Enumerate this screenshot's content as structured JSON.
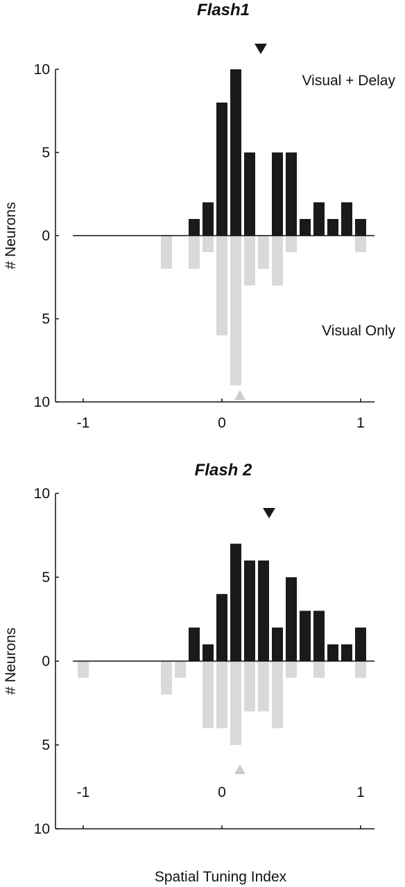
{
  "chart_data": [
    {
      "type": "bar",
      "title": "Flash1",
      "xlabel": "",
      "ylabel": "# Neurons",
      "xlim": [
        -1.08,
        1.1
      ],
      "ylim_up": [
        0,
        10
      ],
      "ylim_down": [
        0,
        10
      ],
      "xticks": [
        "-1",
        "0",
        "1"
      ],
      "xtick_values": [
        -1,
        0,
        1
      ],
      "yticks": [
        "10",
        "5",
        "0",
        "5",
        "10"
      ],
      "bin_width": 0.1,
      "series": [
        {
          "name": "Visual + Delay",
          "color": "#1a1a1a",
          "direction": "up",
          "x": [
            -0.2,
            -0.1,
            0.0,
            0.1,
            0.2,
            0.4,
            0.5,
            0.6,
            0.7,
            0.8,
            0.9,
            1.0
          ],
          "values": [
            1,
            2,
            8,
            10,
            5,
            5,
            5,
            1,
            2,
            1,
            2,
            1
          ]
        },
        {
          "name": "Visual Only",
          "color": "#d9d9d9",
          "direction": "down",
          "x": [
            -0.4,
            -0.2,
            -0.1,
            0.0,
            0.1,
            0.2,
            0.3,
            0.4,
            0.5,
            1.0
          ],
          "values": [
            2,
            2,
            1,
            6,
            9,
            3,
            2,
            3,
            1,
            1
          ]
        }
      ],
      "markers": [
        {
          "series": "Visual + Delay",
          "x": 0.28,
          "shape": "down-triangle",
          "color": "#1a1a1a"
        },
        {
          "series": "Visual Only",
          "x": 0.13,
          "shape": "up-triangle",
          "color": "#cccccc"
        }
      ]
    },
    {
      "type": "bar",
      "title": "Flash 2",
      "xlabel": "Spatial Tuning Index",
      "ylabel": "# Neurons",
      "xlim": [
        -1.08,
        1.1
      ],
      "ylim_up": [
        0,
        10
      ],
      "ylim_down": [
        0,
        10
      ],
      "xticks": [
        "-1",
        "0",
        "1"
      ],
      "xtick_values": [
        -1,
        0,
        1
      ],
      "yticks": [
        "10",
        "5",
        "0",
        "5",
        "10"
      ],
      "bin_width": 0.1,
      "series": [
        {
          "name": "",
          "color": "#1a1a1a",
          "direction": "up",
          "x": [
            -0.2,
            -0.1,
            0.0,
            0.1,
            0.2,
            0.3,
            0.4,
            0.5,
            0.6,
            0.7,
            0.8,
            0.9,
            1.0
          ],
          "values": [
            2,
            1,
            4,
            7,
            6,
            6,
            2,
            5,
            3,
            3,
            1,
            1,
            2
          ]
        },
        {
          "name": "",
          "color": "#d9d9d9",
          "direction": "down",
          "x": [
            -1.0,
            -0.4,
            -0.3,
            -0.1,
            0.0,
            0.1,
            0.2,
            0.3,
            0.4,
            0.5,
            0.7,
            1.0
          ],
          "values": [
            1,
            2,
            1,
            4,
            4,
            5,
            3,
            3,
            4,
            1,
            1,
            1
          ]
        }
      ],
      "markers": [
        {
          "x": 0.34,
          "shape": "down-triangle",
          "color": "#1a1a1a"
        },
        {
          "x": 0.13,
          "shape": "up-triangle",
          "color": "#cccccc"
        }
      ]
    }
  ]
}
